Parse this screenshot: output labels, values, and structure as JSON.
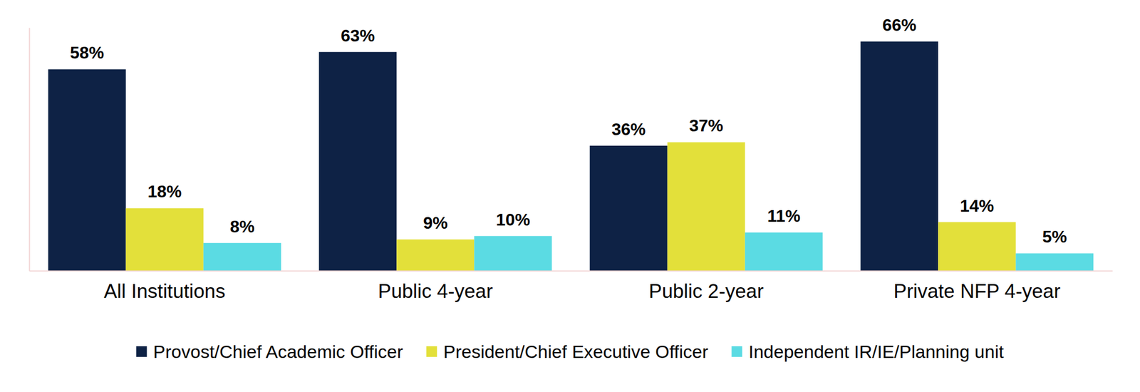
{
  "chart_data": {
    "type": "bar",
    "categories": [
      "All Institutions",
      "Public 4-year",
      "Public 2-year",
      "Private NFP 4-year"
    ],
    "series": [
      {
        "name": "Provost/Chief Academic Officer",
        "color": "#0e2245",
        "values": [
          58,
          63,
          36,
          66
        ],
        "value_labels": [
          "58%",
          "63%",
          "36%",
          "66%"
        ]
      },
      {
        "name": "President/Chief Executive Officer",
        "color": "#e3e03a",
        "values": [
          18,
          9,
          37,
          14
        ],
        "value_labels": [
          "18%",
          "9%",
          "37%",
          "14%"
        ]
      },
      {
        "name": "Independent IR/IE/Planning unit",
        "color": "#5bdbe3",
        "values": [
          8,
          10,
          11,
          5
        ],
        "value_labels": [
          "8%",
          "10%",
          "11%",
          "5%"
        ]
      }
    ],
    "ylim": [
      0,
      70
    ],
    "tick_labels": "x",
    "data_labels": true,
    "legend": "bottom",
    "grid": false
  }
}
